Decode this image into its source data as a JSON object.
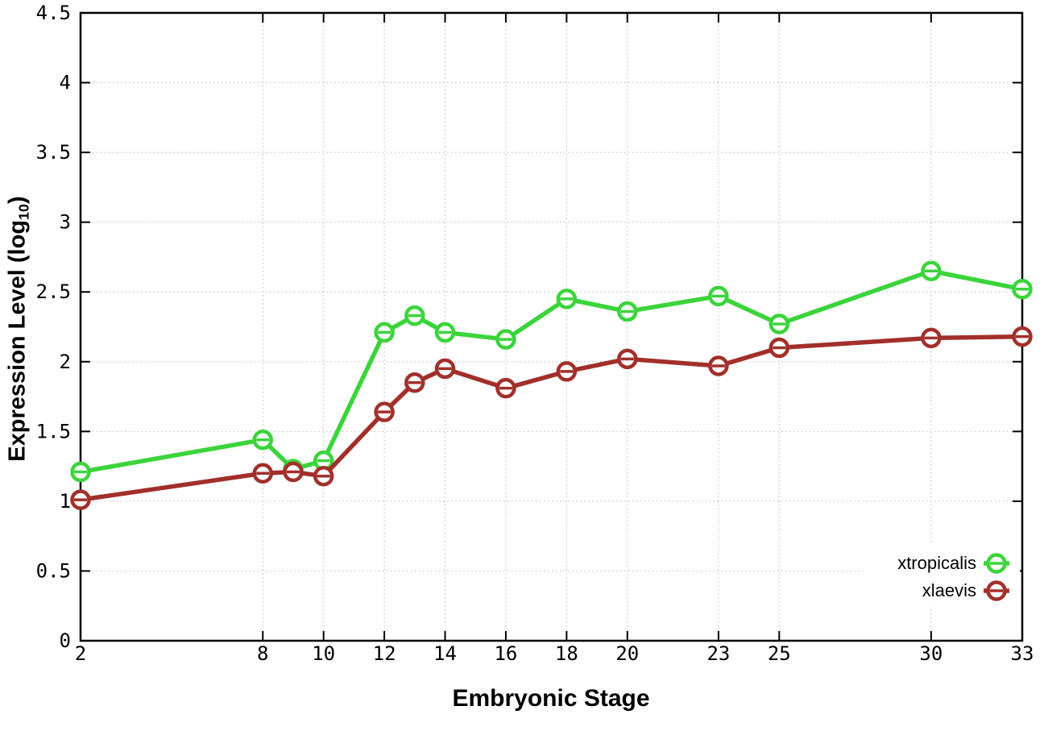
{
  "figure": {
    "background": "#ffffff",
    "border_color": "#000000",
    "grid_color": "#b8b8b8",
    "tick_label_color": "#000000"
  },
  "chart_data": {
    "type": "line",
    "title": "",
    "xlabel": "Embryonic Stage",
    "ylabel": "Expression Level (log10)",
    "ylabel_rich": {
      "pre": "Expression Level (log",
      "sub": "10",
      "post": ")"
    },
    "xlim": [
      2,
      33
    ],
    "ylim": [
      0,
      4.5
    ],
    "x_ticks": [
      2,
      8,
      10,
      12,
      14,
      16,
      18,
      20,
      23,
      25,
      30,
      33
    ],
    "y_ticks": [
      0,
      0.5,
      1,
      1.5,
      2,
      2.5,
      3,
      3.5,
      4,
      4.5
    ],
    "y_tick_labels": [
      "0",
      "0.5",
      "1",
      "1.5",
      "2",
      "2.5",
      "3",
      "3.5",
      "4",
      "4.5"
    ],
    "grid": true,
    "marker": "open-circle-with-errorbar",
    "legend_position": "bottom-right-inside",
    "x": [
      2,
      8,
      9,
      10,
      12,
      13,
      14,
      16,
      18,
      20,
      23,
      25,
      30,
      33
    ],
    "series": [
      {
        "name": "xtropicalis",
        "color": "#3bd43b",
        "values": [
          1.21,
          1.44,
          1.23,
          1.29,
          2.21,
          2.33,
          2.21,
          2.16,
          2.45,
          2.36,
          2.47,
          2.27,
          2.65,
          2.52
        ]
      },
      {
        "name": "xlaevis",
        "color": "#a22f2a",
        "values": [
          1.01,
          1.2,
          1.21,
          1.18,
          1.64,
          1.85,
          1.95,
          1.81,
          1.93,
          2.02,
          1.97,
          2.1,
          2.17,
          2.18
        ]
      }
    ]
  }
}
